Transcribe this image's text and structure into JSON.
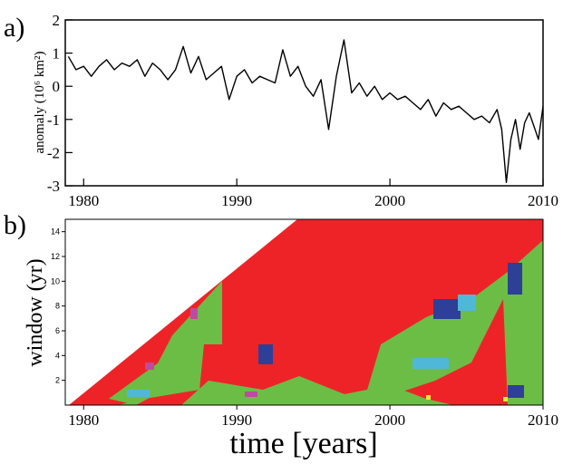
{
  "panel_labels": {
    "a": "a)",
    "b": "b)"
  },
  "chart_data": [
    {
      "type": "line",
      "panel": "a",
      "ylabel": "anomaly (10⁶ km²)",
      "xlabel": "",
      "xlim": [
        1978.8,
        2010
      ],
      "ylim": [
        -3,
        2
      ],
      "x_ticks": [
        1980,
        1990,
        2000,
        2010
      ],
      "y_ticks": [
        -3,
        -2,
        -1,
        0,
        1,
        2
      ],
      "grid": false,
      "series": [
        {
          "color": "#000000",
          "x": [
            1979,
            1979.5,
            1980,
            1980.5,
            1981,
            1981.5,
            1982,
            1982.5,
            1983,
            1983.5,
            1984,
            1984.5,
            1985,
            1985.5,
            1986,
            1986.5,
            1987,
            1987.5,
            1988,
            1988.5,
            1989,
            1989.5,
            1990,
            1990.5,
            1991,
            1991.5,
            1992,
            1992.5,
            1993,
            1993.5,
            1994,
            1994.5,
            1995,
            1995.5,
            1996,
            1996.5,
            1997,
            1997.5,
            1998,
            1998.5,
            1999,
            1999.5,
            2000,
            2000.5,
            2001,
            2001.5,
            2002,
            2002.5,
            2003,
            2003.5,
            2004,
            2004.5,
            2005,
            2005.5,
            2006,
            2006.5,
            2007,
            2007.3,
            2007.6,
            2007.9,
            2008.2,
            2008.5,
            2008.8,
            2009.1,
            2009.4,
            2009.7,
            2010
          ],
          "values": [
            0.9,
            0.5,
            0.6,
            0.3,
            0.6,
            0.8,
            0.5,
            0.7,
            0.6,
            0.8,
            0.3,
            0.7,
            0.5,
            0.2,
            0.5,
            1.2,
            0.4,
            0.9,
            0.2,
            0.4,
            0.6,
            -0.4,
            0.3,
            0.5,
            0.1,
            0.3,
            0.2,
            0.1,
            1.1,
            0.3,
            0.6,
            0.0,
            -0.3,
            0.2,
            -1.3,
            0.3,
            1.4,
            -0.2,
            0.1,
            -0.3,
            0.0,
            -0.4,
            -0.2,
            -0.4,
            -0.3,
            -0.5,
            -0.7,
            -0.4,
            -0.9,
            -0.5,
            -0.7,
            -0.6,
            -0.8,
            -1.0,
            -0.9,
            -1.1,
            -0.7,
            -1.3,
            -2.9,
            -1.6,
            -1.0,
            -1.9,
            -1.1,
            -0.8,
            -1.2,
            -1.6,
            -0.6
          ]
        }
      ]
    },
    {
      "type": "heatmap",
      "panel": "b",
      "ylabel": "window (yr)",
      "xlabel": "time [years]",
      "xlim": [
        1978.8,
        2010
      ],
      "ylim": [
        0,
        15
      ],
      "x_ticks": [
        1980,
        1990,
        2000,
        2010
      ],
      "y_ticks": [
        2,
        4,
        6,
        8,
        10,
        12,
        14
      ],
      "grid": false,
      "colors": {
        "red": "#ee2328",
        "green": "#6cbd45",
        "blue": "#2e3f97",
        "cyan": "#4fb8d8",
        "magenta": "#c04aa0",
        "yellow": "#e8e83a"
      }
    }
  ]
}
